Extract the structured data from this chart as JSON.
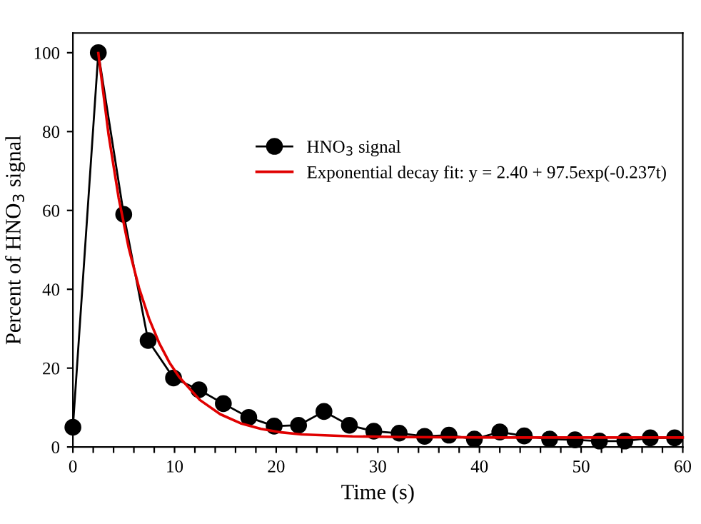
{
  "chart_data": {
    "type": "line",
    "xlabel": "Time (s)",
    "ylabel": "Percent of HNO$_{3}$ signal",
    "xlim": [
      0,
      60
    ],
    "ylim": [
      0,
      105
    ],
    "xticks": [
      0,
      {
        "value": 2,
        "label": null
      },
      {
        "value": 4,
        "label": null
      },
      {
        "value": 6,
        "label": null
      },
      {
        "value": 8,
        "label": null
      },
      10,
      {
        "value": 12,
        "label": null
      },
      {
        "value": 14,
        "label": null
      },
      {
        "value": 16,
        "label": null
      },
      {
        "value": 18,
        "label": null
      },
      20,
      {
        "value": 22,
        "label": null
      },
      {
        "value": 24,
        "label": null
      },
      {
        "value": 26,
        "label": null
      },
      {
        "value": 28,
        "label": null
      },
      30,
      {
        "value": 32,
        "label": null
      },
      {
        "value": 34,
        "label": null
      },
      {
        "value": 36,
        "label": null
      },
      {
        "value": 38,
        "label": null
      },
      40,
      {
        "value": 42,
        "label": null
      },
      {
        "value": 44,
        "label": null
      },
      {
        "value": 46,
        "label": null
      },
      {
        "value": 48,
        "label": null
      },
      50,
      {
        "value": 52,
        "label": null
      },
      {
        "value": 54,
        "label": null
      },
      {
        "value": 56,
        "label": null
      },
      {
        "value": 58,
        "label": null
      },
      60
    ],
    "yticks": [
      0,
      20,
      40,
      60,
      80,
      100
    ],
    "grid": false,
    "legend": "top right",
    "series": [
      {
        "name": "HNO$_{3}$ signal",
        "color": "#000000",
        "marker": "circle",
        "x": [
          0,
          2.5,
          5,
          7.4,
          9.9,
          12.4,
          14.8,
          17.3,
          19.8,
          22.2,
          24.7,
          27.2,
          29.6,
          32.1,
          34.6,
          37,
          39.5,
          42,
          44.4,
          46.9,
          49.4,
          51.8,
          54.3,
          56.8,
          59.2
        ],
        "values": [
          5,
          100,
          59,
          27,
          17.5,
          14.5,
          11,
          7.5,
          5.3,
          5.5,
          9,
          5.5,
          4,
          3.5,
          2.7,
          3,
          2,
          3.8,
          2.8,
          2,
          1.8,
          1.5,
          1.5,
          2.3,
          2.3
        ]
      },
      {
        "name": "Exponential decay fit: y = 2.40 + 97.5exp(-0.237t)",
        "color": "#e00000",
        "marker": "none",
        "x": [
          2.5,
          3.5,
          4.5,
          5.5,
          6.5,
          7.5,
          8.5,
          9.5,
          10.5,
          12.5,
          14.5,
          16.5,
          18.5,
          20.5,
          22.5,
          27.5,
          32.5,
          42.5,
          60
        ],
        "values": [
          99.9,
          79.4,
          63.2,
          50.4,
          40.4,
          32.5,
          26.3,
          21.4,
          17.6,
          11.9,
          8.3,
          6.0,
          4.6,
          3.7,
          3.2,
          2.7,
          2.5,
          2.4,
          2.4
        ]
      }
    ]
  }
}
